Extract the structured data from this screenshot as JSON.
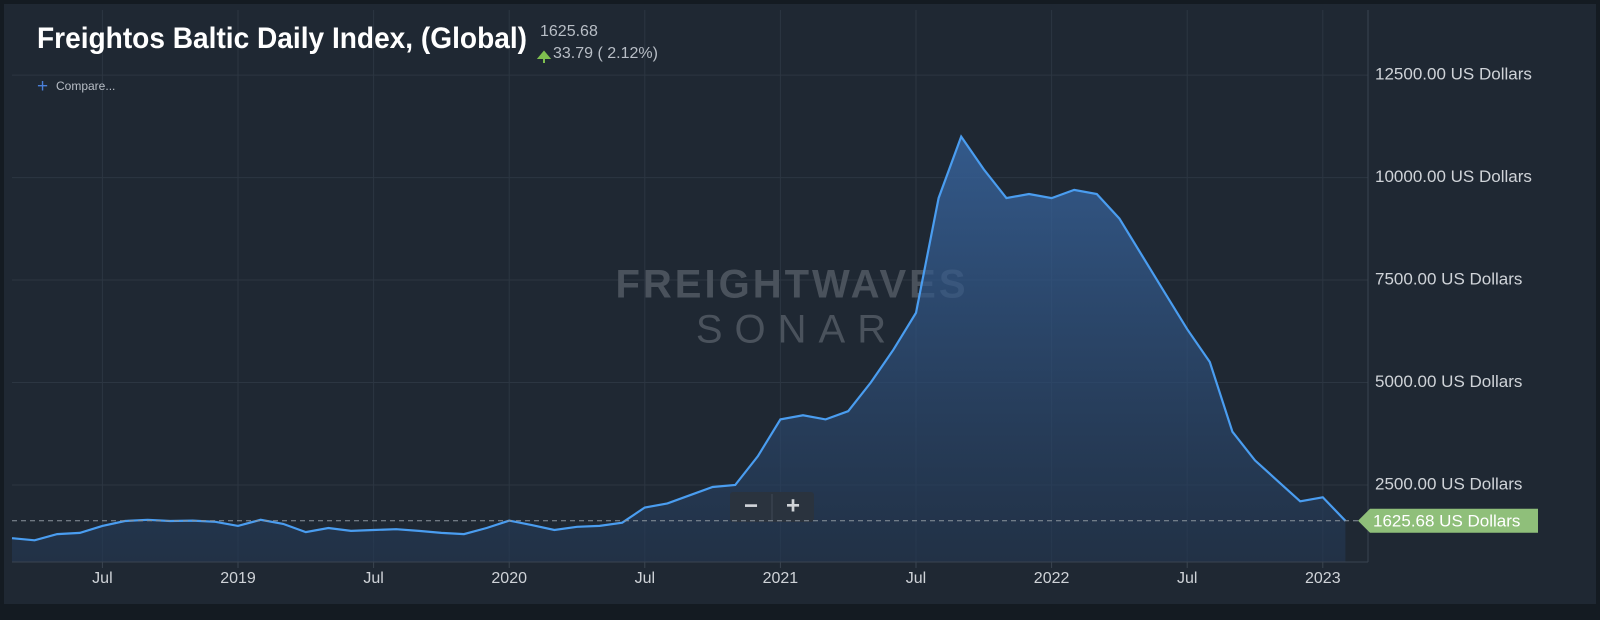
{
  "chart_data": {
    "type": "area",
    "title": "Freightos Baltic Daily Index, (Global)",
    "latest_value": 1625.68,
    "change_label": "33.79 ( 2.12%)",
    "compare_label": "Compare...",
    "watermark": [
      "FREIGHTWAVES",
      "SONAR"
    ],
    "zoom_buttons": [
      "−",
      "+"
    ],
    "latest_label": "1625.68 US Dollars",
    "x": [
      "2018-03",
      "2018-04",
      "2018-05",
      "2018-06",
      "2018-07",
      "2018-08",
      "2018-09",
      "2018-10",
      "2018-11",
      "2018-12",
      "2019-01",
      "2019-02",
      "2019-03",
      "2019-04",
      "2019-05",
      "2019-06",
      "2019-07",
      "2019-08",
      "2019-09",
      "2019-10",
      "2019-11",
      "2019-12",
      "2020-01",
      "2020-02",
      "2020-03",
      "2020-04",
      "2020-05",
      "2020-06",
      "2020-07",
      "2020-08",
      "2020-09",
      "2020-10",
      "2020-11",
      "2020-12",
      "2021-01",
      "2021-02",
      "2021-03",
      "2021-04",
      "2021-05",
      "2021-06",
      "2021-07",
      "2021-08",
      "2021-09",
      "2021-10",
      "2021-11",
      "2021-12",
      "2022-01",
      "2022-02",
      "2022-03",
      "2022-04",
      "2022-05",
      "2022-06",
      "2022-07",
      "2022-08",
      "2022-09",
      "2022-10",
      "2022-11",
      "2022-12",
      "2023-01",
      "2023-02"
    ],
    "series": [
      {
        "name": "Freightos Baltic Daily Index, (Global)",
        "color": "#4a9df0",
        "values": [
          1200,
          1150,
          1300,
          1330,
          1500,
          1620,
          1650,
          1620,
          1630,
          1600,
          1500,
          1650,
          1550,
          1350,
          1450,
          1380,
          1400,
          1420,
          1380,
          1330,
          1300,
          1450,
          1630,
          1520,
          1400,
          1480,
          1500,
          1580,
          1950,
          2050,
          2250,
          2450,
          2500,
          3200,
          4100,
          4200,
          4100,
          4300,
          5000,
          5800,
          6700,
          9500,
          11000,
          10200,
          9500,
          9600,
          9500,
          9700,
          9600,
          9000,
          8100,
          7200,
          6300,
          5500,
          3800,
          3100,
          2600,
          2100,
          2200,
          1625.68
        ]
      }
    ],
    "xlim": [
      "2018-03",
      "2023-03"
    ],
    "xticks": [
      {
        "value": "2018-07",
        "label": "Jul"
      },
      {
        "value": "2019-01",
        "label": "2019"
      },
      {
        "value": "2019-07",
        "label": "Jul"
      },
      {
        "value": "2020-01",
        "label": "2020"
      },
      {
        "value": "2020-07",
        "label": "Jul"
      },
      {
        "value": "2021-01",
        "label": "2021"
      },
      {
        "value": "2021-07",
        "label": "Jul"
      },
      {
        "value": "2022-01",
        "label": "2022"
      },
      {
        "value": "2022-07",
        "label": "Jul"
      },
      {
        "value": "2023-01",
        "label": "2023"
      }
    ],
    "ylim": [
      620,
      14090
    ],
    "yticks": [
      {
        "value": 2500,
        "label": "2500.00 US Dollars"
      },
      {
        "value": 5000,
        "label": "5000.00 US Dollars"
      },
      {
        "value": 7500,
        "label": "7500.00 US Dollars"
      },
      {
        "value": 10000,
        "label": "10000.00 US Dollars"
      },
      {
        "value": 12500,
        "label": "12500.00 US Dollars"
      }
    ],
    "grid": true
  }
}
